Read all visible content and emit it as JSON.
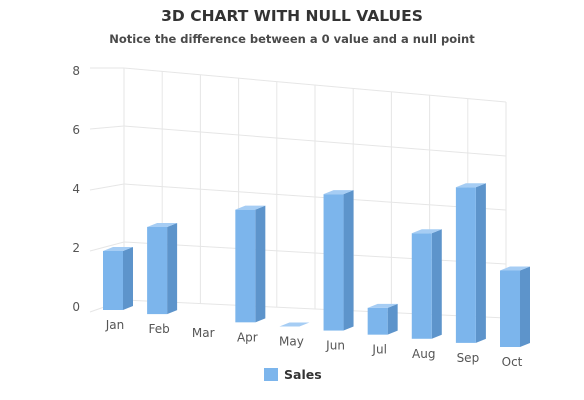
{
  "chart_data": {
    "type": "bar",
    "title": "3D CHART WITH NULL VALUES",
    "subtitle": "Notice the difference between a 0 value and a null point",
    "categories": [
      "Jan",
      "Feb",
      "Mar",
      "Apr",
      "May",
      "Jun",
      "Jul",
      "Aug",
      "Sep",
      "Oct"
    ],
    "series": [
      {
        "name": "Sales",
        "values": [
          2,
          3,
          null,
          4,
          0,
          5,
          1,
          4,
          6,
          3
        ]
      }
    ],
    "xlabel": "",
    "ylabel": "",
    "ylim": [
      0,
      8
    ],
    "yticks": [
      0,
      2,
      4,
      6,
      8
    ],
    "grid": true,
    "legend": "bottom-center",
    "colors": {
      "front": "#7cb5ec",
      "side": "#5d94cb",
      "top": "#a6cdf4",
      "grid": "#e6e6e6",
      "axis_text": "#555555"
    }
  }
}
